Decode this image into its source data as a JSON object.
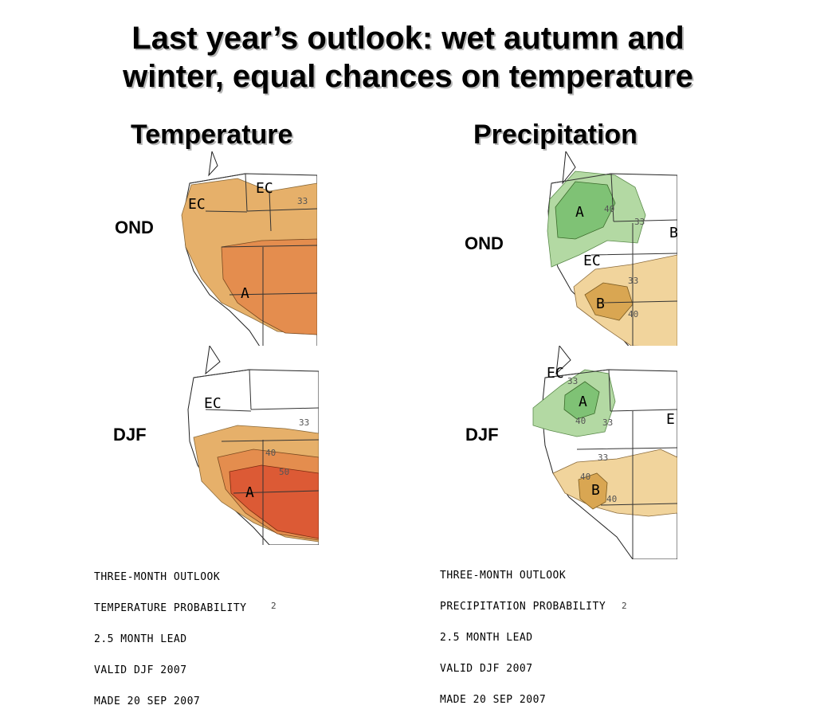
{
  "title": {
    "line1": "Last year’s outlook: wet autumn and",
    "line2": "winter, equal chances on temperature"
  },
  "columns": {
    "temperature": "Temperature",
    "precipitation": "Precipitation"
  },
  "seasons": {
    "temp_ond": "OND",
    "temp_djf": "DJF",
    "precip_ond": "OND",
    "precip_djf": "DJF"
  },
  "colors": {
    "above_temp_33": "#e6b06a",
    "above_temp_40": "#e48d4e",
    "above_temp_50": "#dc5a35",
    "above_precip_33": "#b3d9a3",
    "above_precip_40": "#7fc275",
    "below_precip_33": "#f1d49c",
    "below_precip_40": "#d9a652"
  },
  "maps": {
    "temp_ond": {
      "ec_labels": [
        "EC",
        "EC"
      ],
      "category": "A",
      "contours": [
        "33"
      ]
    },
    "temp_djf": {
      "ec_label": "EC",
      "category": "A",
      "contours": [
        "33",
        "40",
        "50"
      ]
    },
    "precip_ond": {
      "above": "A",
      "ec_label": "EC",
      "below": "B",
      "edge_letter": "B",
      "contours": [
        "40",
        "33",
        "33",
        "40"
      ]
    },
    "precip_djf": {
      "top_label": "EC",
      "above": "A",
      "below": "B",
      "edge_letter": "E",
      "contours": [
        "33",
        "40",
        "33",
        "33",
        "40",
        "40"
      ]
    }
  },
  "captions": {
    "temperature": [
      "THREE-MONTH OUTLOOK",
      "TEMPERATURE PROBABILITY",
      "2.5 MONTH LEAD",
      "VALID DJF 2007",
      "MADE 20 SEP 2007"
    ],
    "precipitation": [
      "THREE-MONTH OUTLOOK",
      "PRECIPITATION PROBABILITY",
      "2.5 MONTH LEAD",
      "VALID DJF 2007",
      "MADE 20 SEP 2007"
    ]
  },
  "footer_marks": {
    "left": "2",
    "right": "2"
  }
}
